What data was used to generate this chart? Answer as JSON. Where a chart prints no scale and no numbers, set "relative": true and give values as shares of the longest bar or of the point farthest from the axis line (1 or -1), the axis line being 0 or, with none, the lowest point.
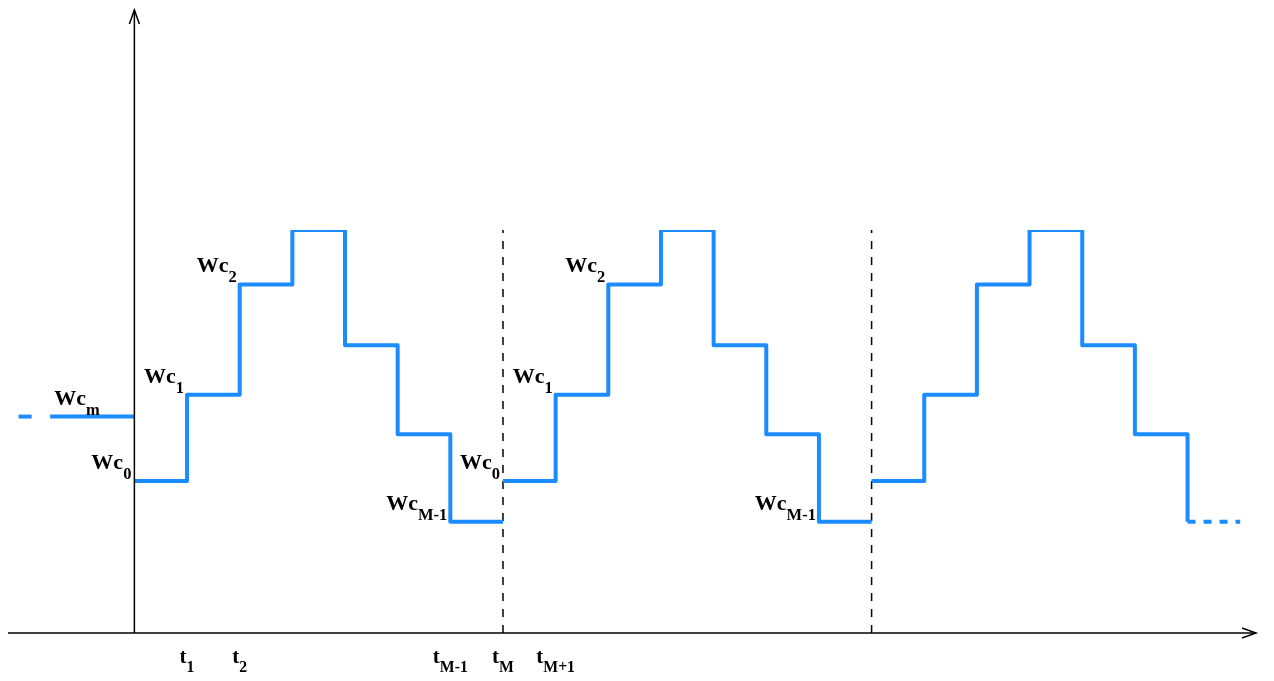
{
  "chart_data": {
    "type": "step",
    "relative": true,
    "xlim": [
      -2.4,
      21.3
    ],
    "xticks": [
      {
        "value": 1,
        "label": "t$_{1}$"
      },
      {
        "value": 2,
        "label": "t$_{2}$"
      },
      {
        "value": 6,
        "label": "t$_{M-1}$"
      },
      {
        "value": 7,
        "label": "t$_{M}$"
      },
      {
        "value": 8,
        "label": "t$_{M+1}$"
      }
    ],
    "series": [
      {
        "color": "#1a8cff",
        "line_style": "solid",
        "x": [
          -2.2,
          -1.95
        ],
        "values": [
          0.537,
          0.537
        ]
      },
      {
        "color": "#1a8cff",
        "line_style": "solid",
        "x": [
          -1.6,
          0
        ],
        "values": [
          0.537,
          0.537
        ]
      },
      {
        "color": "#1a8cff",
        "line_style": "solid",
        "x": [
          0,
          1,
          2,
          3,
          4,
          5,
          6,
          7
        ],
        "values": [
          0.377,
          0.591,
          0.865,
          1,
          0.714,
          0.493,
          0.276,
          0.276
        ]
      },
      {
        "color": "#1a8cff",
        "line_style": "solid",
        "x": [
          7,
          8,
          9,
          10,
          11,
          12,
          13,
          14
        ],
        "values": [
          0.377,
          0.591,
          0.865,
          1,
          0.714,
          0.493,
          0.276,
          0.276
        ]
      },
      {
        "color": "#1a8cff",
        "line_style": "solid",
        "x": [
          14,
          15,
          16,
          17,
          18,
          19,
          20
        ],
        "values": [
          0.377,
          0.591,
          0.865,
          1,
          0.714,
          0.493,
          0.276
        ]
      },
      {
        "color": "#1a8cff",
        "line_style": "dashed",
        "x": [
          20,
          21
        ],
        "values": [
          0.276,
          0.276
        ]
      }
    ],
    "ref_lines": [
      {
        "axis": "x",
        "value": 7,
        "color": "#000000",
        "line_style": "dashed"
      },
      {
        "axis": "x",
        "value": 14,
        "color": "#000000",
        "line_style": "dashed"
      }
    ],
    "annotations": [
      {
        "text": "Wc$_{m}$",
        "x": -0.6,
        "y": 0.537
      },
      {
        "text": "Wc$_{0}$",
        "x": 0,
        "y": 0.377
      },
      {
        "text": "Wc$_{1}$",
        "x": 1,
        "y": 0.591
      },
      {
        "text": "Wc$_{2}$",
        "x": 2,
        "y": 0.865
      },
      {
        "text": "Wc$_{M-1}$",
        "x": 6,
        "y": 0.276
      },
      {
        "text": "Wc$_{0}$",
        "x": 7,
        "y": 0.377
      },
      {
        "text": "Wc$_{1}$",
        "x": 8,
        "y": 0.591
      },
      {
        "text": "Wc$_{2}$",
        "x": 9,
        "y": 0.865
      },
      {
        "text": "Wc$_{M-1}$",
        "x": 13,
        "y": 0.276
      }
    ]
  }
}
